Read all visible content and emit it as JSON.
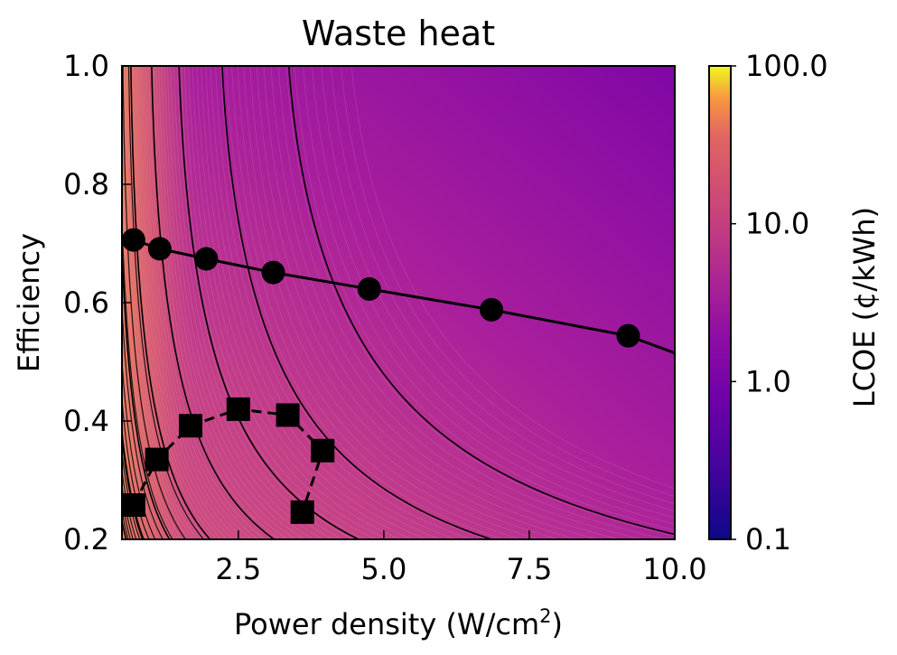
{
  "chart_data": {
    "type": "heatmap",
    "title": "Waste heat",
    "xlabel": "Power density (W/cm",
    "xlabel_superscript": "2",
    "xlabel_suffix": ")",
    "ylabel": "Efficiency",
    "xlim": [
      0.5,
      10.0
    ],
    "ylim": [
      0.2,
      1.0
    ],
    "xticks": [
      2.5,
      5.0,
      7.5,
      10.0
    ],
    "xtick_labels": [
      "2.5",
      "5.0",
      "7.5",
      "10.0"
    ],
    "yticks": [
      0.2,
      0.4,
      0.6,
      0.8,
      1.0
    ],
    "ytick_labels": [
      "0.2",
      "0.4",
      "0.6",
      "0.8",
      "1.0"
    ],
    "colorbar": {
      "label": "LCOE (¢/kWh)",
      "scale": "log",
      "range": [
        0.1,
        100.0
      ],
      "ticks": [
        0.1,
        1.0,
        10.0,
        100.0
      ],
      "tick_labels": [
        "0.1",
        "1.0",
        "10.0",
        "100.0"
      ],
      "colormap": "plasma"
    },
    "series": [
      {
        "marker": "circle",
        "line": "solid",
        "points": [
          {
            "x": 0.7,
            "y": 0.706
          },
          {
            "x": 1.15,
            "y": 0.691
          },
          {
            "x": 1.95,
            "y": 0.674
          },
          {
            "x": 3.1,
            "y": 0.651
          },
          {
            "x": 4.75,
            "y": 0.623
          },
          {
            "x": 6.85,
            "y": 0.588
          },
          {
            "x": 9.2,
            "y": 0.544
          }
        ],
        "line_extends_to": {
          "x": 10.0,
          "y": 0.515
        }
      },
      {
        "marker": "square",
        "line": "dashed",
        "points": [
          {
            "x": 0.7,
            "y": 0.258
          },
          {
            "x": 1.1,
            "y": 0.335
          },
          {
            "x": 1.68,
            "y": 0.392
          },
          {
            "x": 2.5,
            "y": 0.42
          },
          {
            "x": 3.35,
            "y": 0.41
          },
          {
            "x": 3.95,
            "y": 0.35
          },
          {
            "x": 3.6,
            "y": 0.246
          }
        ]
      }
    ],
    "contour_levels_approx": [
      0.33,
      0.5,
      0.75,
      1.1,
      1.7,
      2.6,
      4,
      6,
      9
    ]
  }
}
